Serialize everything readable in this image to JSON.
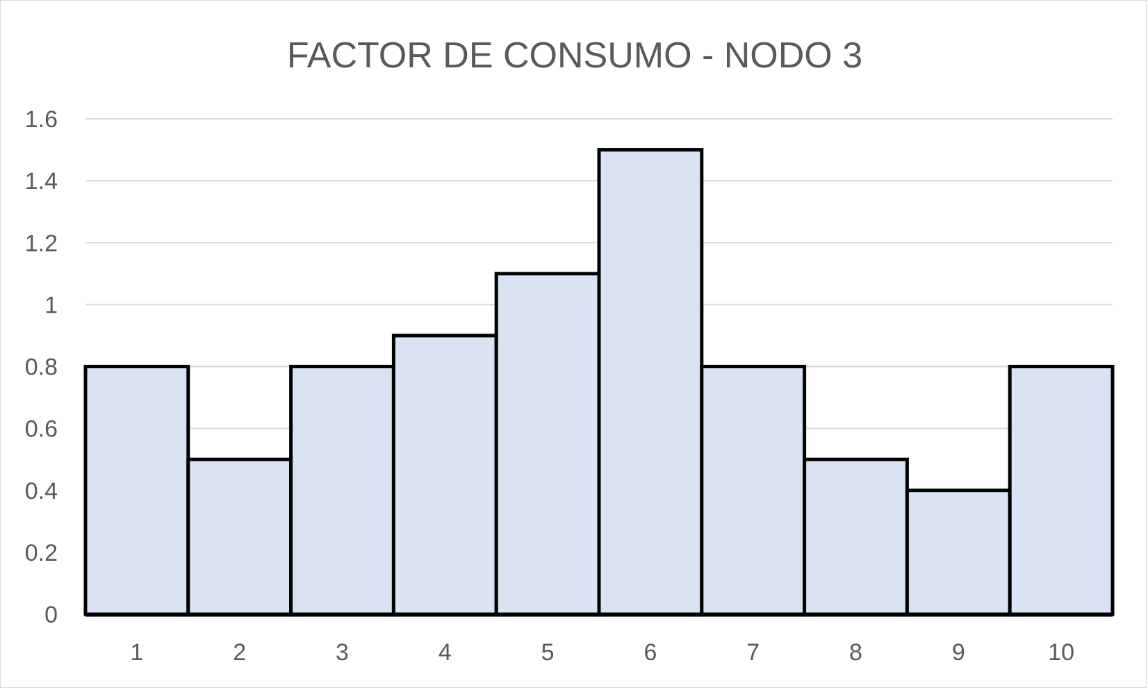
{
  "chart_data": {
    "type": "bar",
    "title": "FACTOR DE CONSUMO - NODO 3",
    "categories": [
      "1",
      "2",
      "3",
      "4",
      "5",
      "6",
      "7",
      "8",
      "9",
      "10"
    ],
    "values": [
      0.8,
      0.5,
      0.8,
      0.9,
      1.1,
      1.5,
      0.8,
      0.5,
      0.4,
      0.8
    ],
    "ylim": [
      0,
      1.6
    ],
    "yticks": [
      "0",
      "0.2",
      "0.4",
      "0.6",
      "0.8",
      "1",
      "1.2",
      "1.4",
      "1.6"
    ],
    "ytick_values": [
      0,
      0.2,
      0.4,
      0.6,
      0.8,
      1,
      1.2,
      1.4,
      1.6
    ],
    "grid": true,
    "legend": "none",
    "colors": {
      "bar_fill": "#dae3f3",
      "bar_stroke": "#000000",
      "grid": "#d9d9d9",
      "text": "#595959"
    }
  }
}
